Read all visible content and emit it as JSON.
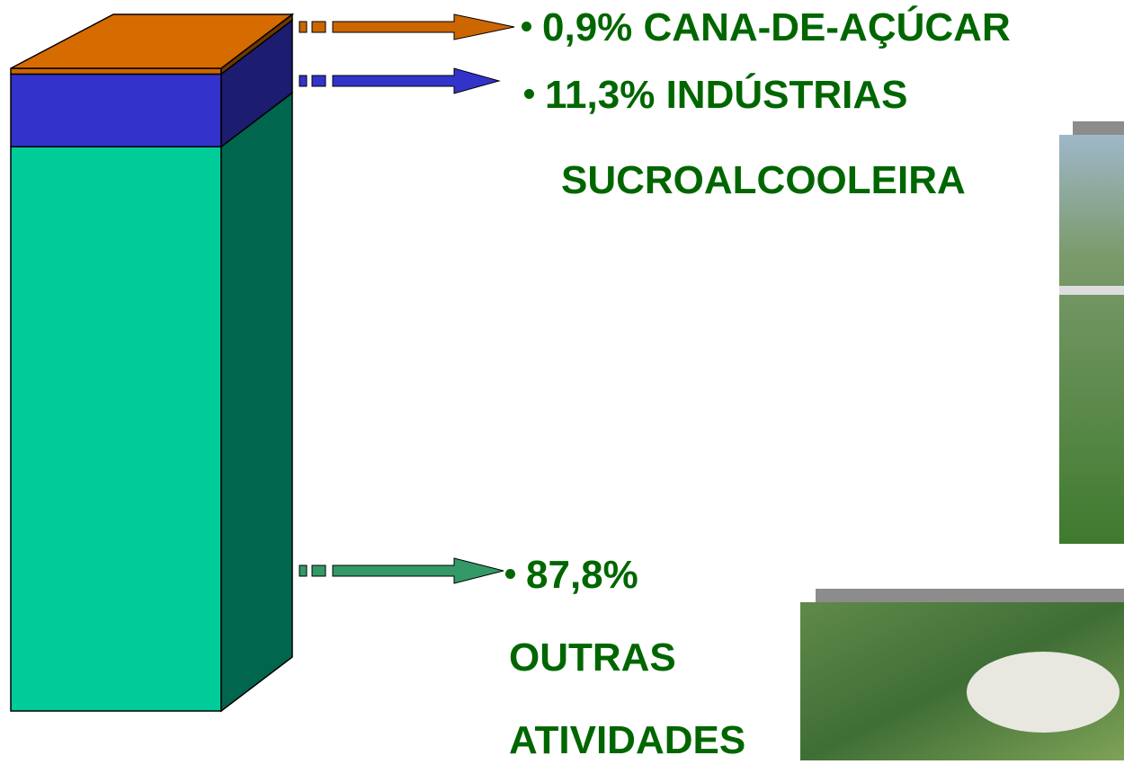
{
  "chart_data": {
    "type": "stacked-bar-3d",
    "series": [
      {
        "name": "CANA-DE-AÇÚCAR",
        "color": "#cc6600",
        "values": [
          0.9
        ],
        "value_labels": [
          "0,9%"
        ]
      },
      {
        "name": "INDÚSTRIAS SUCROALCOOLEIRA",
        "color": "#3333cc",
        "values": [
          11.3
        ],
        "value_labels": [
          "11,3%"
        ]
      },
      {
        "name": "OUTRAS ATIVIDADES",
        "color": "#00cc99",
        "values": [
          87.8
        ],
        "value_labels": [
          "87,8%"
        ]
      }
    ]
  }
}
